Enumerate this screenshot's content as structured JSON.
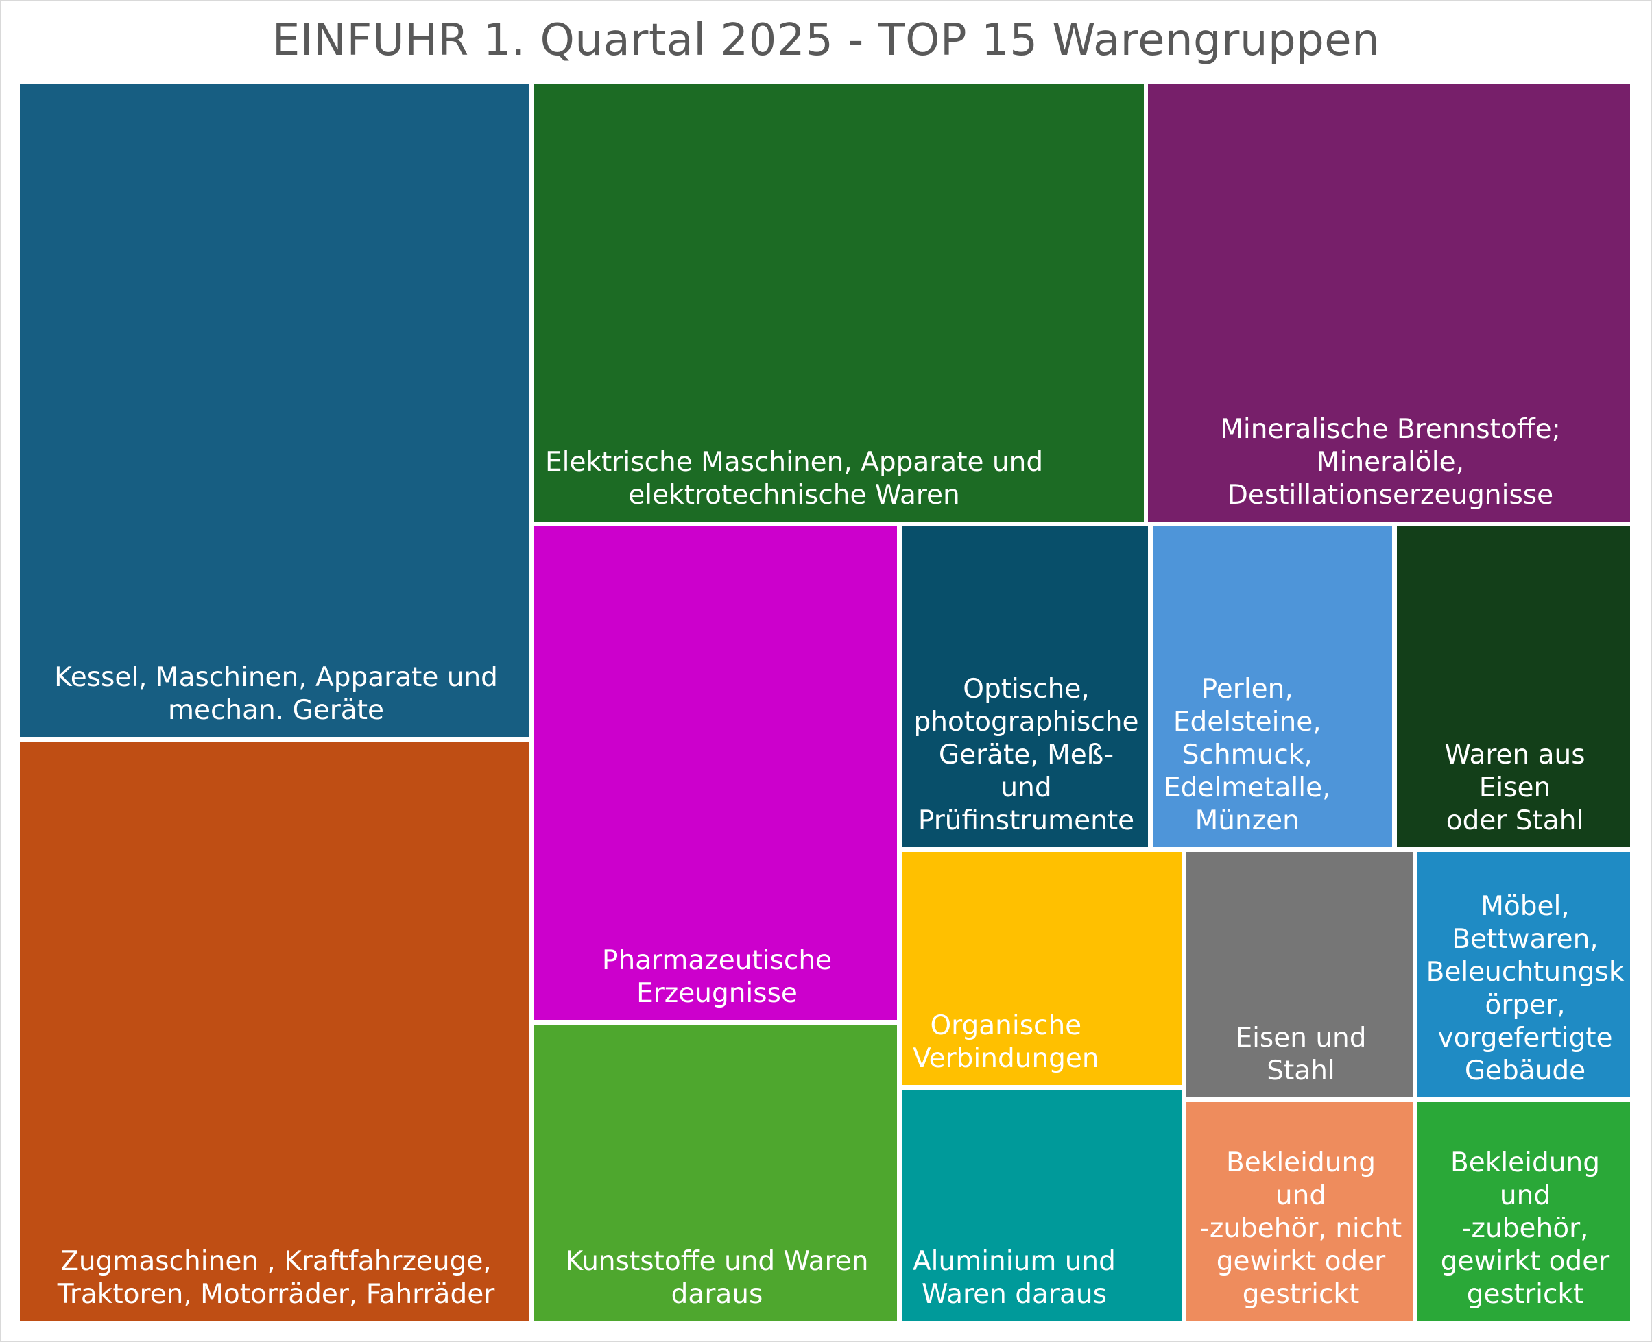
{
  "chart_data": {
    "type": "treemap",
    "title": "EINFUHR 1. Quartal 2025 - TOP 15 Warengruppen",
    "items": [
      {
        "label": "Kessel, Maschinen, Apparate und\nmechan. Geräte",
        "color": "#175E82"
      },
      {
        "label": "Zugmaschinen , Kraftfahrzeuge,\nTraktoren, Motorräder, Fahrräder",
        "color": "#BF4E14"
      },
      {
        "label": "Elektrische Maschinen, Apparate und\nelektrotechnische Waren",
        "color": "#1C6B24"
      },
      {
        "label": "Mineralische Brennstoffe;\nMineralöle, Destillationserzeugnisse",
        "color": "#771F6A"
      },
      {
        "label": "Pharmazeutische\nErzeugnisse",
        "color": "#CC00CC"
      },
      {
        "label": "Kunststoffe und Waren\ndaraus",
        "color": "#4EA72E"
      },
      {
        "label": "Optische,\nphotographische\nGeräte, Meß- und\nPrüfinstrumente",
        "color": "#084F6A"
      },
      {
        "label": "Perlen,\nEdelsteine,\nSchmuck,\nEdelmetalle,\nMünzen",
        "color": "#4E95D9"
      },
      {
        "label": "Waren aus Eisen\noder Stahl",
        "color": "#133F19"
      },
      {
        "label": "Organische\nVerbindungen",
        "color": "#FFC000"
      },
      {
        "label": "Eisen und Stahl",
        "color": "#767676"
      },
      {
        "label": "Möbel,\nBettwaren,\nBeleuchtungsk\nörper,\nvorgefertigte\nGebäude",
        "color": "#1F8BC4"
      },
      {
        "label": "Aluminium und\nWaren daraus",
        "color": "#009A9A"
      },
      {
        "label": "Bekleidung und\n-zubehör, nicht\ngewirkt oder\ngestrickt",
        "color": "#EE8C5D"
      },
      {
        "label": "Bekleidung und\n-zubehör,\ngewirkt oder\ngestrickt",
        "color": "#2AA838"
      }
    ]
  }
}
